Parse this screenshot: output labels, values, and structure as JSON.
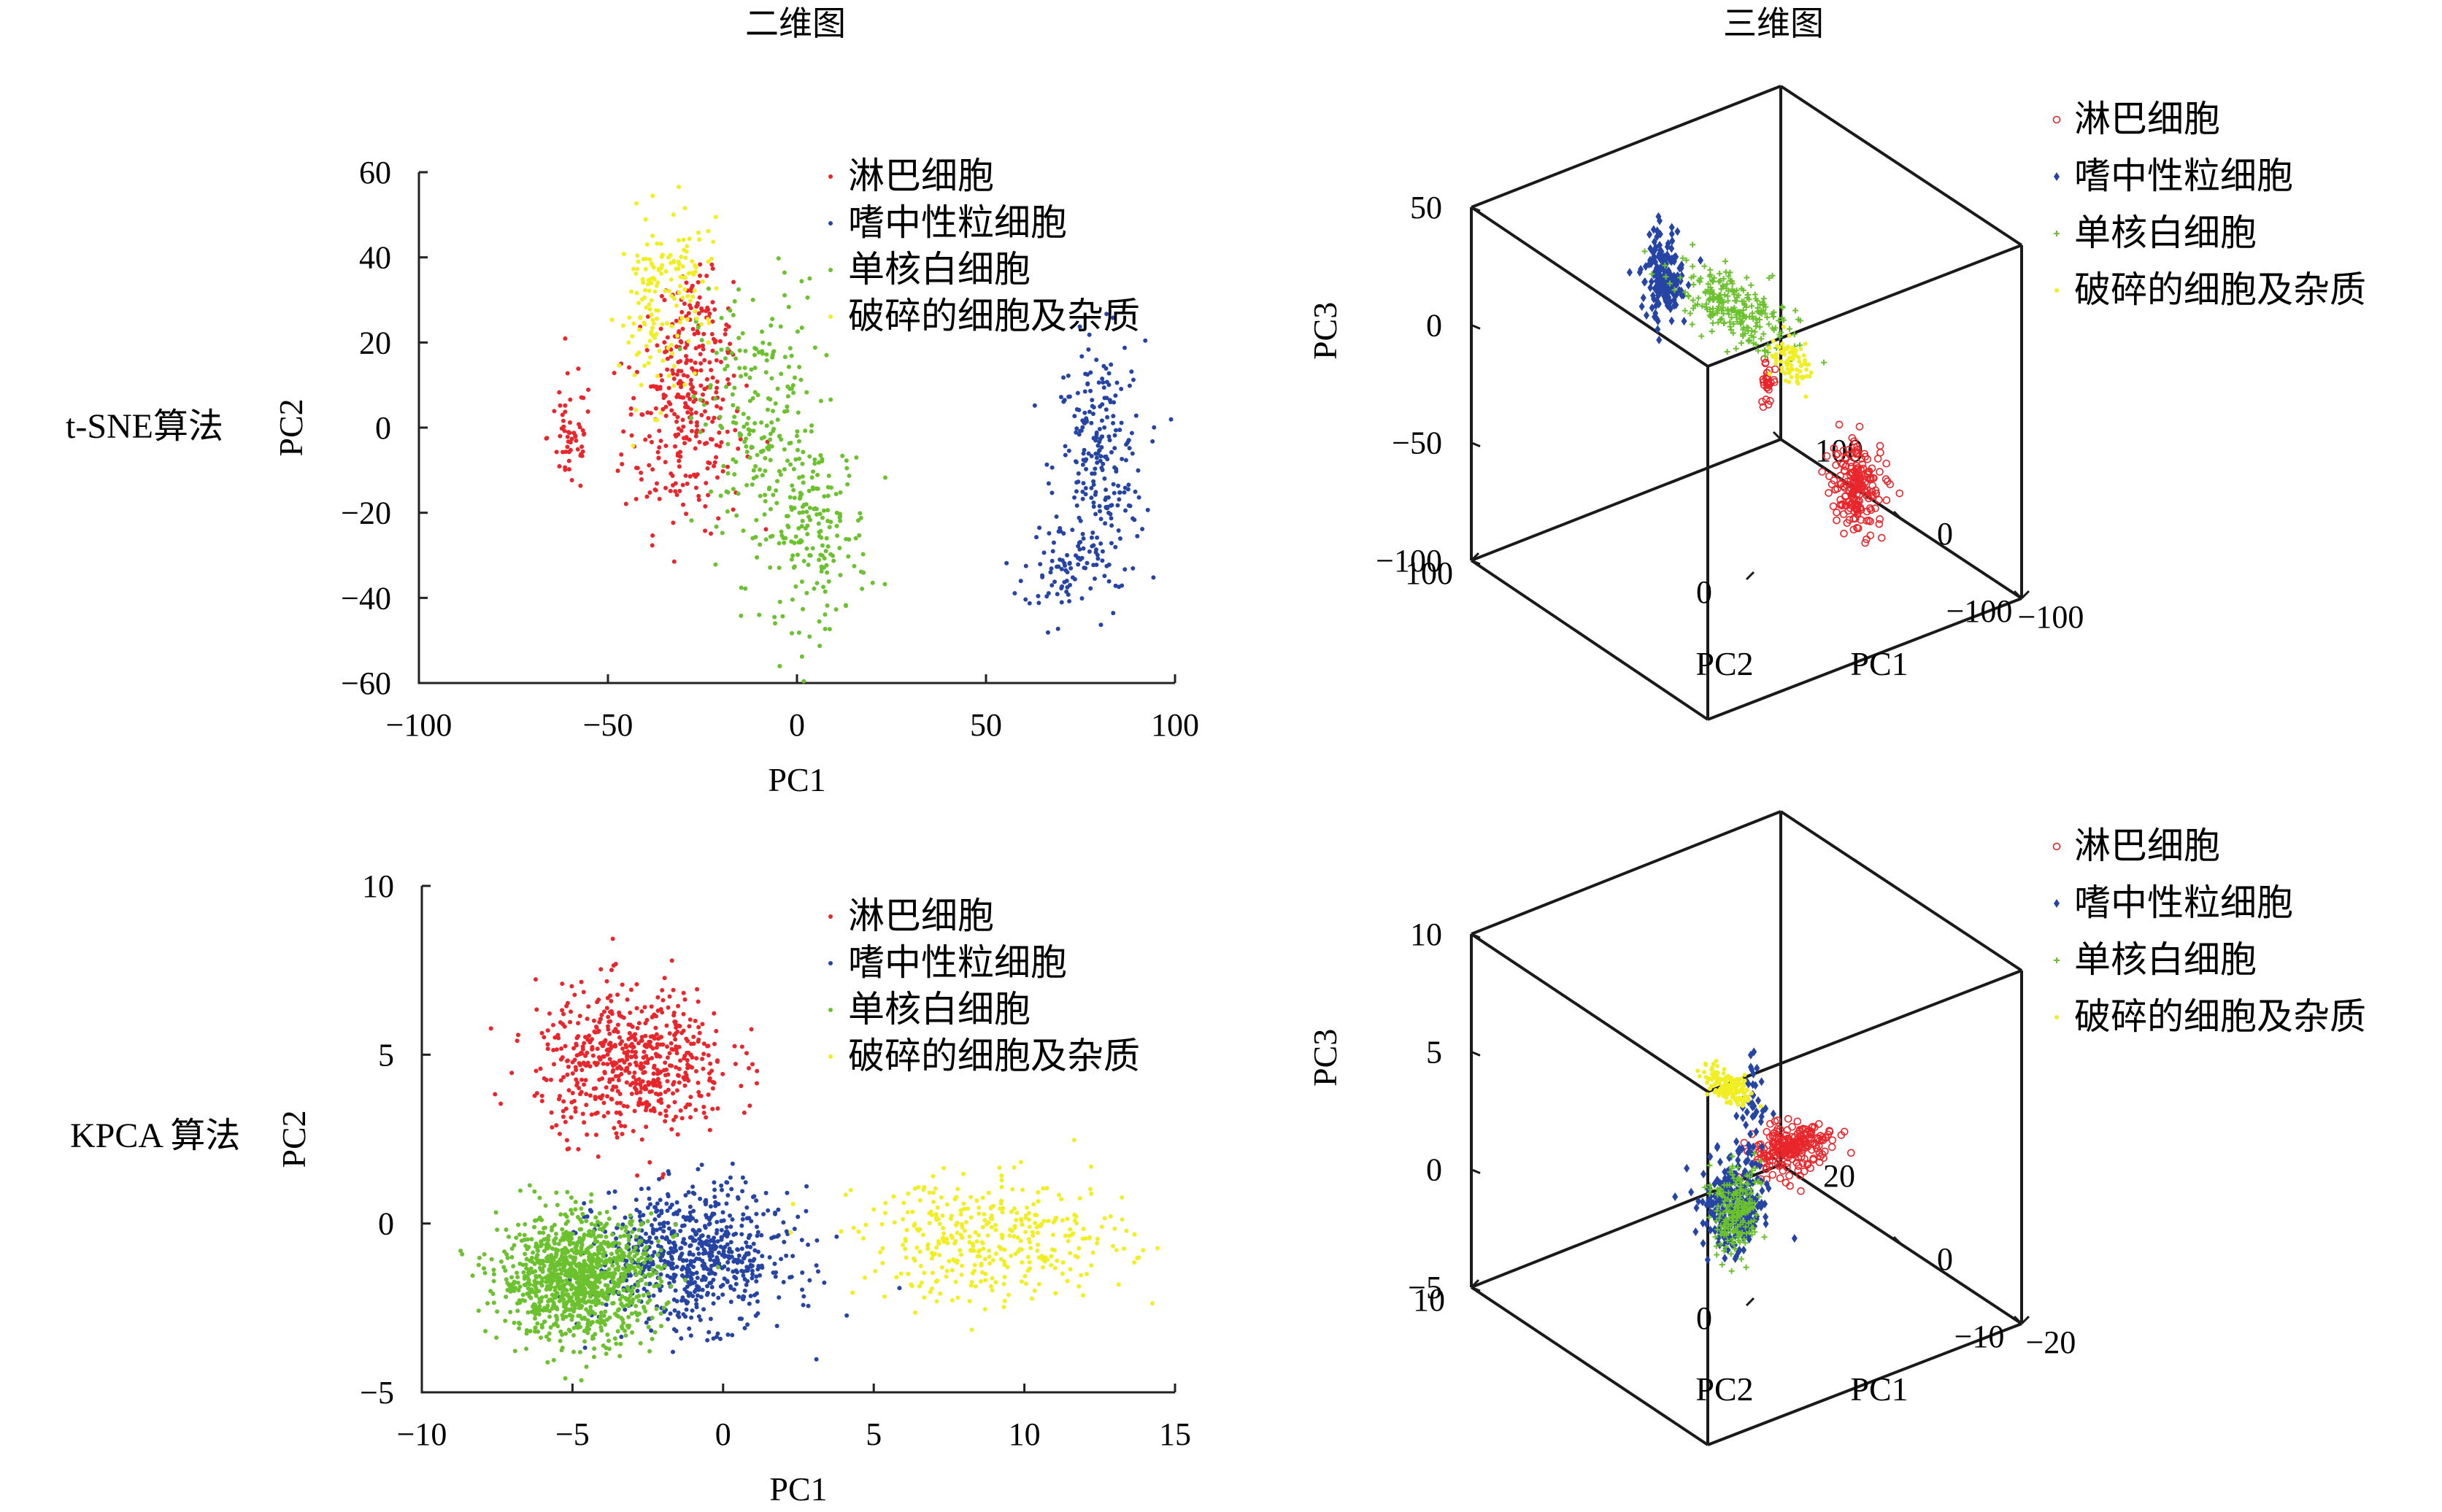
{
  "column_titles": {
    "left": "二维图",
    "right": "三维图"
  },
  "row_labels": {
    "top": "t-SNE算法",
    "bottom": "KPCA 算法"
  },
  "colors": {
    "淋巴细胞": "#e8262b",
    "嗜中性粒细胞": "#2644a4",
    "单核白细胞": "#6cc12e",
    "破碎的细胞及杂质": "#f1ef24"
  },
  "legend": [
    "淋巴细胞",
    "嗜中性粒细胞",
    "单核白细胞",
    "破碎的细胞及杂质"
  ],
  "chart_data": [
    {
      "id": "tsne-2d",
      "type": "scatter",
      "title": "",
      "xlabel": "PC1",
      "ylabel": "PC2",
      "xlim": [
        -100,
        100
      ],
      "ylim": [
        -60,
        60
      ],
      "xticks": [
        "−100",
        "−50",
        "0",
        "50",
        "100"
      ],
      "yticks": [
        "60",
        "40",
        "20",
        "0",
        "−20",
        "−40",
        "−60"
      ],
      "series": [
        {
          "name": "淋巴细胞",
          "marker": "dot",
          "clusters": [
            {
              "center": [
                -30,
                0
              ],
              "spread": [
                8,
                12
              ],
              "n": 230
            },
            {
              "center": [
                -27,
                22
              ],
              "spread": [
                5,
                7
              ],
              "n": 110
            },
            {
              "center": [
                -60,
                -2
              ],
              "spread": [
                3,
                7
              ],
              "n": 55
            }
          ]
        },
        {
          "name": "嗜中性粒细胞",
          "marker": "dot",
          "clusters": [
            {
              "center": [
                80,
                -10
              ],
              "spread": [
                6,
                15
              ],
              "n": 260
            },
            {
              "center": [
                70,
                -33
              ],
              "spread": [
                5,
                5
              ],
              "n": 60
            }
          ]
        },
        {
          "name": "单核白细胞",
          "marker": "dot",
          "clusters": [
            {
              "center": [
                -10,
                0
              ],
              "spread": [
                8,
                17
              ],
              "n": 230
            },
            {
              "center": [
                5,
                -25
              ],
              "spread": [
                7,
                11
              ],
              "n": 170
            }
          ]
        },
        {
          "name": "破碎的细胞及杂质",
          "marker": "dot",
          "clusters": [
            {
              "center": [
                -37,
                28
              ],
              "spread": [
                5,
                11
              ],
              "n": 130
            },
            {
              "center": [
                -28,
                38
              ],
              "spread": [
                4,
                5
              ],
              "n": 40
            }
          ]
        }
      ]
    },
    {
      "id": "tsne-3d",
      "type": "scatter",
      "title": "",
      "xlabel": "PC1",
      "ylabel": "PC2",
      "zlabel": "PC3",
      "xlim": [
        -100,
        100
      ],
      "ylim": [
        -100,
        100
      ],
      "zlim": [
        -100,
        50
      ],
      "xticks": [
        "−100",
        "0",
        "100"
      ],
      "yticks": [
        "100",
        "0",
        "−100"
      ],
      "zticks": [
        "50",
        "0",
        "−50",
        "−100"
      ],
      "series": [
        {
          "name": "淋巴细胞",
          "marker": "open-circle",
          "clusters": [
            {
              "center": [
                -10,
                65,
                -75
              ],
              "spread": [
                8,
                6,
                8
              ],
              "n": 200
            },
            {
              "center": [
                0,
                15,
                -20
              ],
              "spread": [
                3,
                2,
                4
              ],
              "n": 30
            }
          ]
        },
        {
          "name": "嗜中性粒细胞",
          "marker": "diamond",
          "clusters": [
            {
              "center": [
                80,
                10,
                0
              ],
              "spread": [
                5,
                5,
                10
              ],
              "n": 180
            }
          ]
        },
        {
          "name": "单核白细胞",
          "marker": "cross",
          "clusters": [
            {
              "center": [
                20,
                10,
                5
              ],
              "spread": [
                22,
                6,
                6
              ],
              "n": 260
            }
          ]
        },
        {
          "name": "破碎的细胞及杂质",
          "marker": "dot",
          "clusters": [
            {
              "center": [
                -20,
                15,
                -5
              ],
              "spread": [
                6,
                4,
                5
              ],
              "n": 80
            }
          ]
        }
      ]
    },
    {
      "id": "kpca-2d",
      "type": "scatter",
      "title": "",
      "xlabel": "PC1",
      "ylabel": "PC2",
      "xlim": [
        -10,
        15
      ],
      "ylim": [
        -5,
        10
      ],
      "xticks": [
        "−10",
        "−5",
        "0",
        "5",
        "10",
        "15"
      ],
      "yticks": [
        "10",
        "5",
        "0",
        "−5"
      ],
      "series": [
        {
          "name": "淋巴细胞",
          "marker": "dot",
          "clusters": [
            {
              "center": [
                -3,
                4.8
              ],
              "spread": [
                1.6,
                1.1
              ],
              "n": 600
            }
          ]
        },
        {
          "name": "嗜中性粒细胞",
          "marker": "dot",
          "clusters": [
            {
              "center": [
                -1,
                -1
              ],
              "spread": [
                1.6,
                1.0
              ],
              "n": 700
            }
          ]
        },
        {
          "name": "单核白细胞",
          "marker": "dot",
          "clusters": [
            {
              "center": [
                -4.8,
                -1.6
              ],
              "spread": [
                1.3,
                0.9
              ],
              "n": 1100
            }
          ]
        },
        {
          "name": "破碎的细胞及杂质",
          "marker": "dot",
          "clusters": [
            {
              "center": [
                9,
                -0.5
              ],
              "spread": [
                2.2,
                0.9
              ],
              "n": 380
            }
          ]
        }
      ]
    },
    {
      "id": "kpca-3d",
      "type": "scatter",
      "title": "",
      "xlabel": "PC1",
      "ylabel": "PC2",
      "zlabel": "PC3",
      "xlim": [
        -20,
        20
      ],
      "ylim": [
        -10,
        10
      ],
      "zlim": [
        -5,
        10
      ],
      "xticks": [
        "−20",
        "0",
        "20"
      ],
      "yticks": [
        "10",
        "0",
        "−10"
      ],
      "zticks": [
        "10",
        "5",
        "0",
        "−5"
      ],
      "series": [
        {
          "name": "淋巴细胞",
          "marker": "open-circle",
          "clusters": [
            {
              "center": [
                -8,
                0,
                3
              ],
              "spread": [
                1.4,
                1.2,
                0.4
              ],
              "n": 230
            }
          ]
        },
        {
          "name": "嗜中性粒细胞",
          "marker": "diamond",
          "clusters": [
            {
              "center": [
                -1,
                -1,
                -0.3
              ],
              "spread": [
                1.4,
                0.8,
                0.9
              ],
              "n": 300
            },
            {
              "center": [
                -1,
                0,
                3.5
              ],
              "spread": [
                0.4,
                0.4,
                1.2
              ],
              "n": 40
            }
          ]
        },
        {
          "name": "单核白细胞",
          "marker": "cross",
          "clusters": [
            {
              "center": [
                -2.5,
                -1.5,
                -0.2
              ],
              "spread": [
                1.0,
                0.6,
                0.9
              ],
              "n": 200
            }
          ]
        },
        {
          "name": "破碎的细胞及杂质",
          "marker": "dot",
          "clusters": [
            {
              "center": [
                4,
                0.5,
                3.5
              ],
              "spread": [
                1.8,
                0.3,
                0.3
              ],
              "n": 160
            }
          ]
        }
      ]
    }
  ]
}
